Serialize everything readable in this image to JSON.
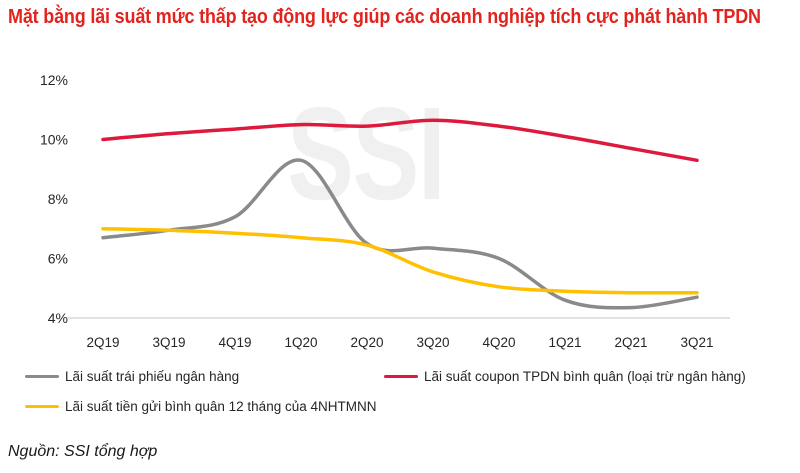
{
  "title": {
    "text": "Mặt bằng lãi suất mức thấp tạo động lực giúp các doanh nghiệp tích cực phát hành TPDN",
    "color": "#E2231E"
  },
  "watermark": {
    "text": "SSI",
    "color": "#F0F0F0"
  },
  "source": {
    "text": "Nguồn: SSI tổng hợp"
  },
  "chart_data": {
    "type": "line",
    "categories": [
      "2Q19",
      "3Q19",
      "4Q19",
      "1Q20",
      "2Q20",
      "3Q20",
      "4Q20",
      "1Q21",
      "2Q21",
      "3Q21"
    ],
    "series": [
      {
        "name": "Lãi suất trái phiếu ngân hàng",
        "color": "#8A8A8A",
        "values": [
          6.7,
          6.95,
          7.4,
          9.3,
          6.5,
          6.35,
          6.0,
          4.6,
          4.35,
          4.7
        ]
      },
      {
        "name": "Lãi suất coupon TPDN bình quân (loại trừ ngân hàng)",
        "color": "#DD1A3E",
        "values": [
          10.0,
          10.2,
          10.35,
          10.5,
          10.45,
          10.65,
          10.45,
          10.1,
          9.7,
          9.3
        ]
      },
      {
        "name": "Lãi suất tiền gửi bình quân 12 tháng của 4NHTMNN",
        "color": "#FFC000",
        "values": [
          7.0,
          6.95,
          6.85,
          6.7,
          6.45,
          5.55,
          5.05,
          4.9,
          4.85,
          4.85
        ]
      }
    ],
    "title": "",
    "xlabel": "",
    "ylabel": "",
    "ylim": [
      4,
      12
    ],
    "y_ticks": [
      "12%",
      "10%",
      "8%",
      "6%",
      "4%"
    ],
    "y_tick_values": [
      12,
      10,
      8,
      6,
      4
    ],
    "grid": false,
    "legend_position": "bottom",
    "axis_color": "#D9D9D9",
    "tick_label_color": "#262626",
    "line_width": 3.5
  }
}
